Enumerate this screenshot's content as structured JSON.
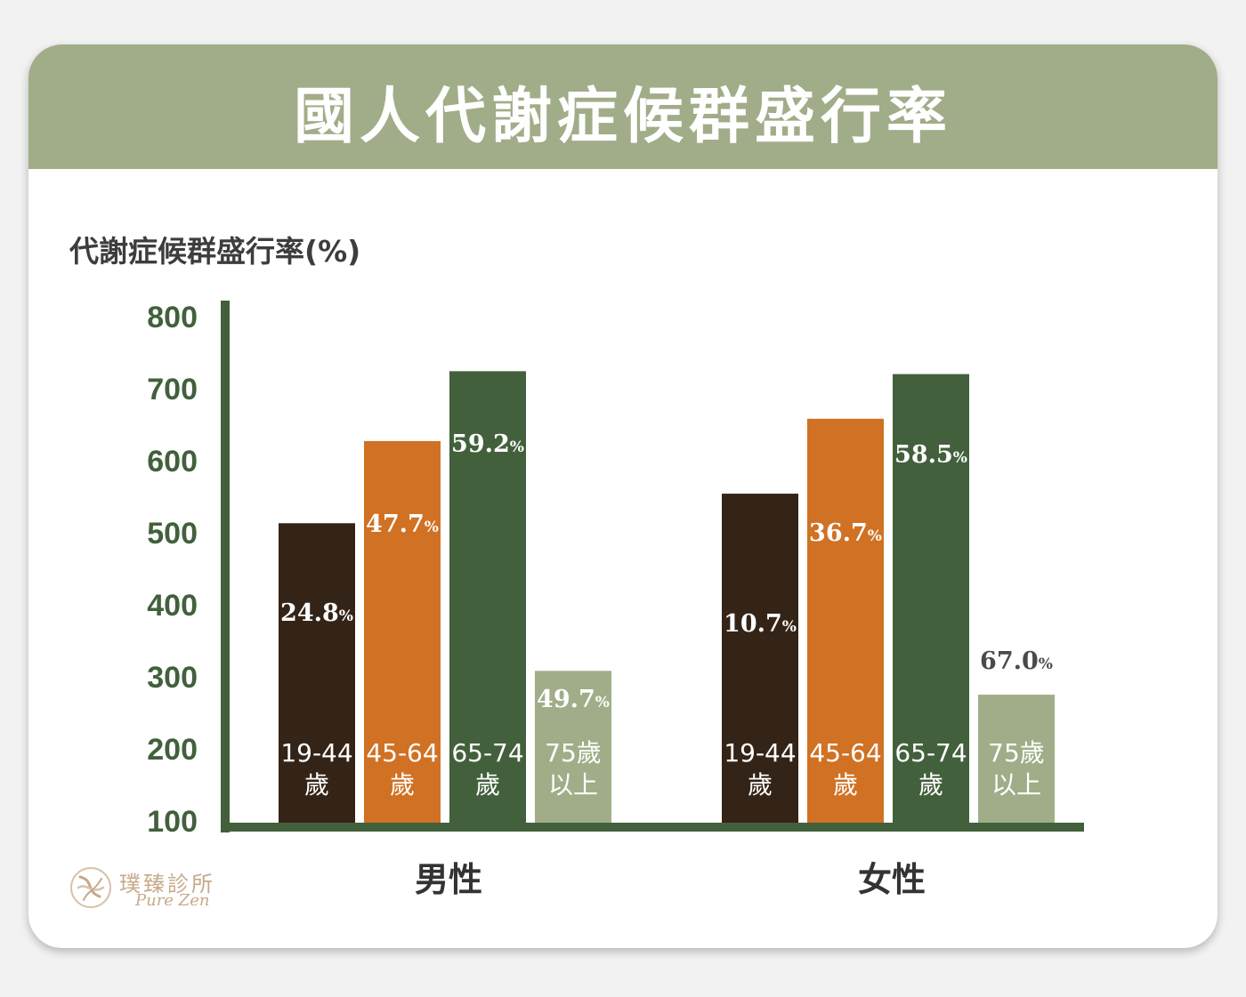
{
  "header": {
    "title": "國人代謝症候群盛行率"
  },
  "colors": {
    "header_bg": "#a0ad88",
    "axis": "#42603c",
    "tick_text": "#42603c",
    "series": [
      "#342417",
      "#d07124",
      "#42603c",
      "#a0ad88"
    ]
  },
  "logo": {
    "name_cn": "璞臻診所",
    "name_en": "Pure Zen",
    "icon": "pure-zen-logo-icon"
  },
  "chart_data": {
    "type": "bar",
    "ylabel": "代謝症候群盛行率(%)",
    "yticks": [
      "800",
      "700",
      "600",
      "500",
      "400",
      "300",
      "200",
      "100"
    ],
    "ylim": [
      100,
      800
    ],
    "categories": [
      "男性",
      "女性"
    ],
    "series": [
      {
        "name": "19-44歲",
        "label_lines": [
          "19-44",
          "歲"
        ],
        "values": [
          512,
          553
        ],
        "data_labels": [
          "24.8%",
          "10.7%"
        ]
      },
      {
        "name": "45-64歲",
        "label_lines": [
          "45-64",
          "歲"
        ],
        "values": [
          626,
          657
        ],
        "data_labels": [
          "47.7%",
          "36.7%"
        ]
      },
      {
        "name": "65-74歲",
        "label_lines": [
          "65-74",
          "歲"
        ],
        "values": [
          723,
          719
        ],
        "data_labels": [
          "59.2%",
          "58.5%"
        ]
      },
      {
        "name": "75歲以上",
        "label_lines": [
          "75歲",
          "以上"
        ],
        "values": [
          307,
          274
        ],
        "data_labels": [
          "49.7%",
          "67.0%"
        ]
      }
    ],
    "grid": false,
    "legend": "none"
  }
}
